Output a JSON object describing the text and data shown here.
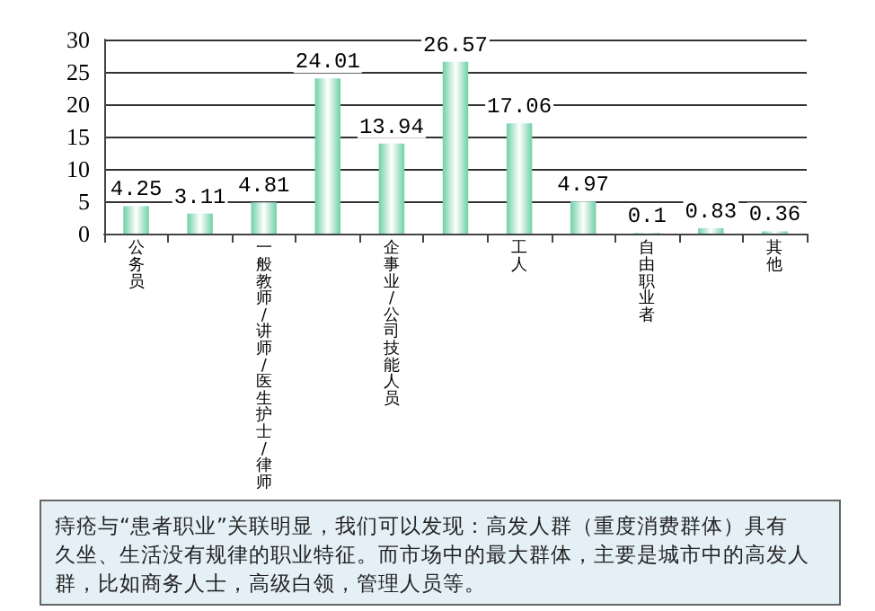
{
  "chart_data": {
    "type": "bar",
    "categories": [
      "公务员",
      null,
      "一般教师/讲师/医生护士/律师",
      null,
      "企事业/公司技能人员",
      null,
      "工人",
      null,
      "自由职业者",
      null,
      "其他"
    ],
    "values": [
      4.25,
      3.11,
      4.81,
      24.01,
      13.94,
      26.57,
      17.06,
      4.97,
      0.1,
      0.83,
      0.36
    ],
    "color": "#6fd0a8",
    "ylim": [
      0,
      30
    ],
    "yticks": [
      0,
      5,
      10,
      15,
      20,
      25,
      30
    ],
    "grid": "y",
    "data_labels": true,
    "annotations": [
      "痔疮与“患者职业”关联明显，我们可以发现：高发人群（重度消费群体）具有久坐、生活没有规律的职业特征。而市场中的最大群体，主要是城市中的高发人群，比如商务人士，高级白领，管理人员等。"
    ]
  }
}
